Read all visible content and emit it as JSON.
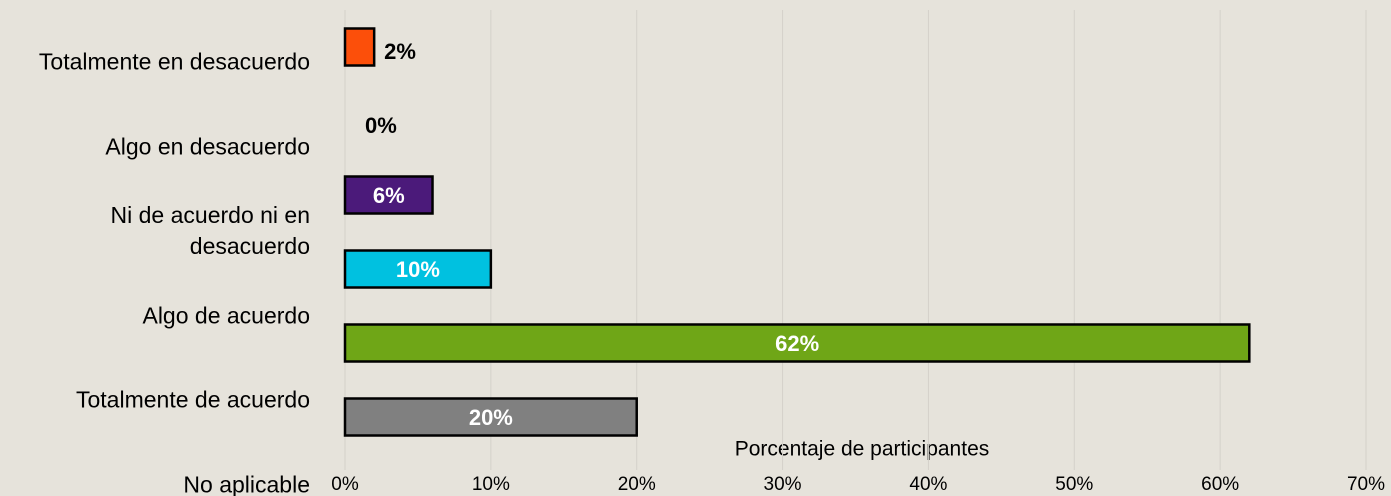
{
  "chart_data": {
    "type": "bar",
    "orientation": "horizontal",
    "x_label": "Porcentaje de participantes",
    "categories": [
      "Totalmente en desacuerdo",
      "Algo en desacuerdo",
      "Ni de acuerdo ni en desacuerdo",
      "Algo de acuerdo",
      "Totalmente de acuerdo",
      "No aplicable"
    ],
    "values": [
      2,
      0,
      6,
      10,
      62,
      20
    ],
    "value_labels": [
      "2%",
      "0%",
      "6%",
      "10%",
      "62%",
      "20%"
    ],
    "colors": [
      "#fc4f0a",
      "#6fa617",
      "#4b1a7a",
      "#00c1e0",
      "#6fa617",
      "#808080"
    ],
    "xlim": [
      0,
      70
    ],
    "xticks": [
      {
        "value": 0,
        "label": "0%"
      },
      {
        "value": 10,
        "label": "10%"
      },
      {
        "value": 20,
        "label": "20%"
      },
      {
        "value": 30,
        "label": "30%"
      },
      {
        "value": 40,
        "label": "40%"
      },
      {
        "value": 50,
        "label": "50%"
      },
      {
        "value": 60,
        "label": "60%"
      },
      {
        "value": 70,
        "label": "70%"
      }
    ],
    "grid": true
  }
}
